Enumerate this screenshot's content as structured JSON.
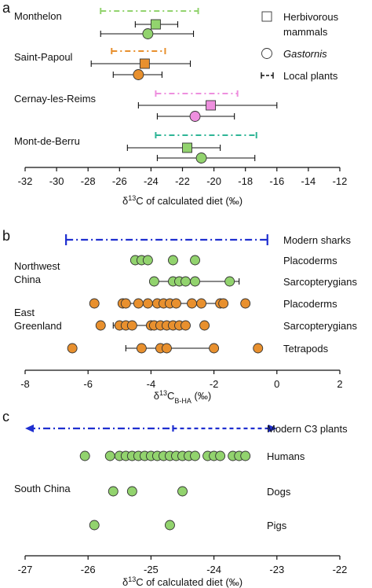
{
  "colors": {
    "green": "#92d36e",
    "orange": "#e8902e",
    "pink": "#ee8fde",
    "teal": "#2eb596",
    "blue": "#1f2fd0",
    "black": "#111111"
  },
  "chart_data": [
    {
      "type": "scatter",
      "panel": "a",
      "xlabel_parts": [
        "δ",
        "13",
        "C of calculated diet (‰)"
      ],
      "xlim": [
        -32,
        -12
      ],
      "xticks": [
        -32,
        -30,
        -28,
        -26,
        -24,
        -22,
        -20,
        -18,
        -16,
        -14,
        -12
      ],
      "legend": {
        "placement": "top-right",
        "herbivores": "Herbivorous mammals",
        "gastornis": "Gastornis",
        "plants": "Local plants"
      },
      "sites": [
        {
          "name": "Monthelon",
          "color": "orange-green",
          "plants": [
            -27.2,
            -21.0
          ],
          "herbivores": {
            "mean": -23.7,
            "range": [
              -25.0,
              -22.3
            ]
          },
          "gastornis": {
            "mean": -24.2,
            "range": [
              -27.2,
              -21.3
            ]
          }
        },
        {
          "name": "Saint-Papoul",
          "plants": [
            -26.5,
            -23.1
          ],
          "herbivores": {
            "mean": -24.4,
            "range": [
              -27.8,
              -21.5
            ]
          },
          "gastornis": {
            "mean": -24.8,
            "range": [
              -26.4,
              -23.3
            ]
          }
        },
        {
          "name": "Cernay-les-Reims",
          "plants": [
            -23.7,
            -18.5
          ],
          "herbivores": {
            "mean": -20.2,
            "range": [
              -24.8,
              -16.0
            ]
          },
          "gastornis": {
            "mean": -21.2,
            "range": [
              -23.6,
              -18.7
            ]
          }
        },
        {
          "name": "Mont-de-Berru",
          "plants": [
            -23.7,
            -17.3
          ],
          "herbivores": {
            "mean": -21.7,
            "range": [
              -25.5,
              -19.6
            ]
          },
          "gastornis": {
            "mean": -20.8,
            "range": [
              -23.6,
              -17.4
            ]
          }
        }
      ]
    },
    {
      "type": "scatter",
      "panel": "b",
      "xlabel_parts": [
        "δ",
        "13",
        "C",
        "B-HA",
        " (‰)"
      ],
      "xlim": [
        -8,
        2
      ],
      "xticks": [
        -8,
        -6,
        -4,
        -2,
        0,
        2
      ],
      "sharks": {
        "label": "Modern sharks",
        "range": [
          -6.7,
          -0.3
        ]
      },
      "groups": [
        "Northwest China",
        "East Greenland"
      ],
      "group_labels": [
        [
          "Northwest",
          "China"
        ],
        [
          "East",
          "Greenland"
        ]
      ],
      "rows": [
        {
          "label": "Placoderms",
          "color": "green",
          "values": [
            -4.5,
            -4.3,
            -4.1,
            -3.3,
            -2.6
          ]
        },
        {
          "label": "Sarcopterygians",
          "color": "green",
          "values": [
            -3.9,
            -3.3,
            -3.1,
            -2.9,
            -2.6,
            -1.5
          ],
          "bar": {
            "mean": -2.9,
            "range": [
              -3.9,
              -1.2
            ]
          }
        },
        {
          "label": "Placoderms",
          "color": "orange",
          "values": [
            -5.8,
            -4.9,
            -4.8,
            -4.4,
            -4.1,
            -3.8,
            -3.6,
            -3.4,
            -3.2,
            -2.7,
            -2.4,
            -1.8,
            -1.7,
            -1.0
          ],
          "bar": {
            "mean": -3.4,
            "range": [
              -5.0,
              -1.6
            ]
          }
        },
        {
          "label": "Sarcopterygians",
          "color": "orange",
          "values": [
            -5.6,
            -5.0,
            -4.8,
            -4.6,
            -4.0,
            -3.9,
            -3.7,
            -3.5,
            -3.3,
            -3.1,
            -2.9,
            -2.3
          ],
          "bar": {
            "mean": -3.9,
            "range": [
              -5.2,
              -3.0
            ]
          }
        },
        {
          "label": "Tetrapods",
          "color": "orange",
          "values": [
            -6.5,
            -4.3,
            -3.7,
            -3.5,
            -2.0,
            -0.6
          ],
          "bar": {
            "mean": -3.5,
            "range": [
              -4.8,
              -1.9
            ]
          }
        }
      ]
    },
    {
      "type": "scatter",
      "panel": "c",
      "xlabel_parts": [
        "δ",
        "13",
        "C of calculated diet (‰)"
      ],
      "xlim": [
        -27,
        -22
      ],
      "xticks": [
        -27,
        -26,
        -25,
        -24,
        -23,
        -22
      ],
      "plants": {
        "label": "Modern C3 plants",
        "range": [
          -27.0,
          -23.0
        ],
        "mean": -24.65
      },
      "group": "South China",
      "rows": [
        {
          "label": "Humans",
          "color": "green",
          "values": [
            -26.05,
            -25.65,
            -25.5,
            -25.4,
            -25.3,
            -25.2,
            -25.1,
            -25.0,
            -24.9,
            -24.8,
            -24.7,
            -24.6,
            -24.5,
            -24.4,
            -24.3,
            -24.1,
            -24.0,
            -23.9,
            -23.7,
            -23.6,
            -23.5
          ]
        },
        {
          "label": "Dogs",
          "color": "green",
          "values": [
            -25.6,
            -25.3,
            -24.5
          ]
        },
        {
          "label": "Pigs",
          "color": "green",
          "values": [
            -25.9,
            -24.7
          ]
        }
      ]
    }
  ]
}
